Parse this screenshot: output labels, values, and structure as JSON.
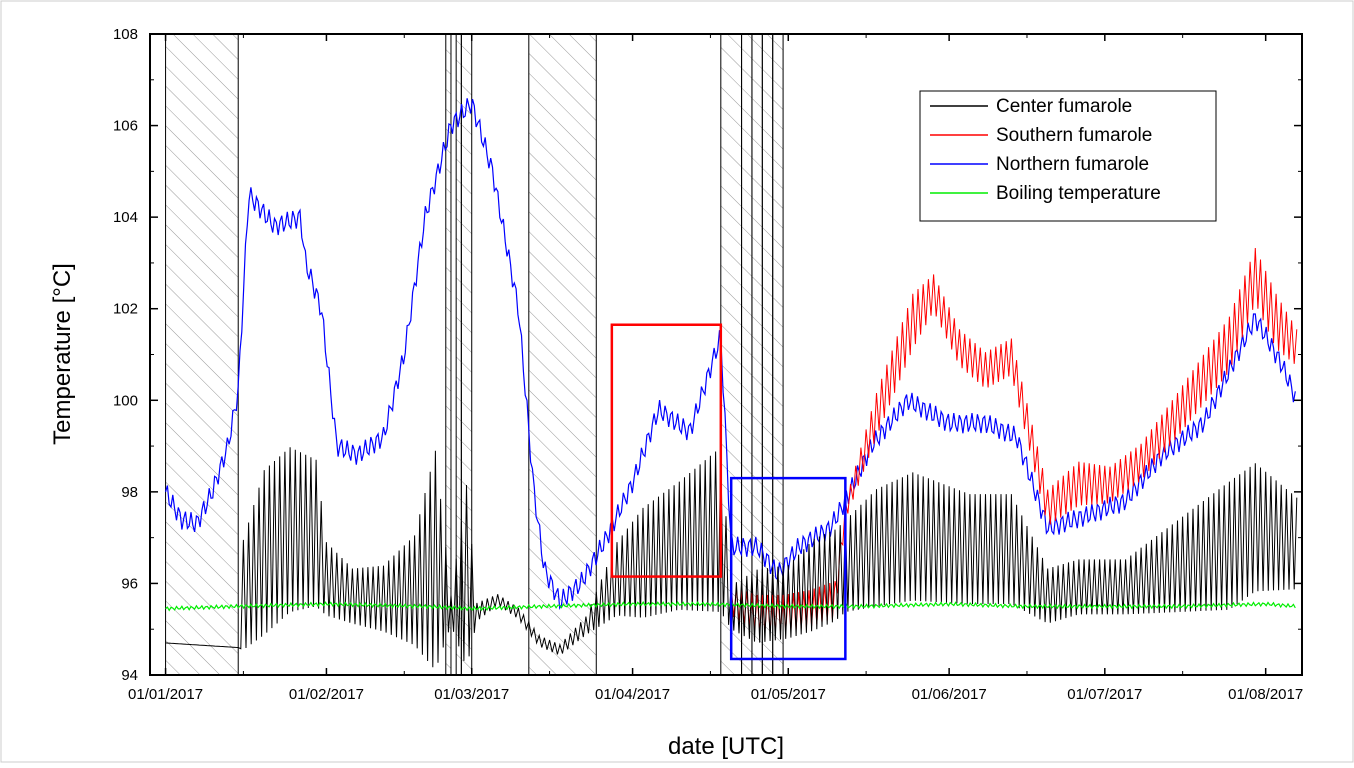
{
  "chart_data": {
    "type": "line",
    "xlabel": "date [UTC]",
    "ylabel": "Temperature [°C]",
    "x_axis": {
      "type": "date",
      "range": [
        "2016-12-29",
        "2017-08-08"
      ],
      "ticks": [
        "2017-01-01",
        "2017-02-01",
        "2017-03-01",
        "2017-04-01",
        "2017-05-01",
        "2017-06-01",
        "2017-07-01",
        "2017-08-01"
      ],
      "tick_labels": [
        "01/01/2017",
        "01/02/2017",
        "01/03/2017",
        "01/04/2017",
        "01/05/2017",
        "01/06/2017",
        "01/07/2017",
        "01/08/2017"
      ]
    },
    "y_axis": {
      "range": [
        94,
        108
      ],
      "ticks": [
        94,
        96,
        98,
        100,
        102,
        104,
        106,
        108
      ],
      "tick_labels": [
        "94",
        "96",
        "98",
        "100",
        "102",
        "104",
        "106",
        "108"
      ]
    },
    "grid": false,
    "legend": {
      "placement": "top-right"
    },
    "series": [
      {
        "name": "Center fumarole",
        "color": "#000000",
        "style": "oscillating",
        "points": [
          [
            "2017-01-01",
            94.7,
            0
          ],
          [
            "2017-01-15",
            94.6,
            0
          ],
          [
            "2017-01-16",
            95.3,
            3.0
          ],
          [
            "2017-01-20",
            96.0,
            4.5
          ],
          [
            "2017-01-25",
            96.5,
            4.5
          ],
          [
            "2017-01-30",
            96.5,
            4.0
          ],
          [
            "2017-02-01",
            95.8,
            2.0
          ],
          [
            "2017-02-06",
            95.5,
            1.5
          ],
          [
            "2017-02-12",
            95.4,
            1.8
          ],
          [
            "2017-02-18",
            95.4,
            3.0
          ],
          [
            "2017-02-22",
            95.6,
            6.0
          ],
          [
            "2017-02-25",
            95.3,
            0.8
          ],
          [
            "2017-02-28",
            95.4,
            5.0
          ],
          [
            "2017-03-02",
            95.3,
            0.5
          ],
          [
            "2017-03-06",
            95.6,
            0.3
          ],
          [
            "2017-03-10",
            95.3,
            0.3
          ],
          [
            "2017-03-14",
            94.7,
            0.3
          ],
          [
            "2017-03-18",
            94.5,
            0.3
          ],
          [
            "2017-03-23",
            95.0,
            0.5
          ],
          [
            "2017-03-29",
            95.8,
            2.0
          ],
          [
            "2017-04-03",
            96.0,
            3.0
          ],
          [
            "2017-04-10",
            96.3,
            3.5
          ],
          [
            "2017-04-18",
            96.5,
            4.5
          ],
          [
            "2017-04-20",
            95.3,
            1.2
          ],
          [
            "2017-04-25",
            95.2,
            2.0
          ],
          [
            "2017-05-01",
            95.3,
            2.0
          ],
          [
            "2017-05-06",
            95.6,
            2.5
          ],
          [
            "2017-05-10",
            95.8,
            2.5
          ],
          [
            "2017-05-12",
            96.0,
            2.5
          ],
          [
            "2017-05-18",
            96.3,
            3.2
          ],
          [
            "2017-05-25",
            96.5,
            3.5
          ],
          [
            "2017-06-05",
            96.3,
            3.0
          ],
          [
            "2017-06-13",
            96.3,
            3.0
          ],
          [
            "2017-06-20",
            95.5,
            1.5
          ],
          [
            "2017-06-26",
            95.7,
            1.5
          ],
          [
            "2017-07-05",
            95.7,
            1.5
          ],
          [
            "2017-07-15",
            96.0,
            2.5
          ],
          [
            "2017-07-25",
            96.3,
            3.5
          ],
          [
            "2017-07-30",
            96.7,
            3.5
          ],
          [
            "2017-08-07",
            96.5,
            2.5
          ]
        ]
      },
      {
        "name": "Southern fumarole",
        "color": "#ff0000",
        "style": "oscillating",
        "points": [
          [
            "2017-04-20",
            95.5,
            0.8
          ],
          [
            "2017-04-25",
            95.2,
            1.0
          ],
          [
            "2017-04-30",
            95.2,
            1.0
          ],
          [
            "2017-05-05",
            95.3,
            1.0
          ],
          [
            "2017-05-10",
            95.5,
            1.0
          ],
          [
            "2017-05-12",
            97.5,
            0.5
          ],
          [
            "2017-05-18",
            99.5,
            1.2
          ],
          [
            "2017-05-25",
            101.5,
            1.5
          ],
          [
            "2017-05-29",
            102.2,
            1.0
          ],
          [
            "2017-06-03",
            101.0,
            1.0
          ],
          [
            "2017-06-08",
            100.5,
            1.0
          ],
          [
            "2017-06-13",
            100.8,
            1.0
          ],
          [
            "2017-06-20",
            97.5,
            1.0
          ],
          [
            "2017-06-26",
            98.0,
            1.2
          ],
          [
            "2017-07-02",
            98.0,
            1.0
          ],
          [
            "2017-07-08",
            98.5,
            1.0
          ],
          [
            "2017-07-15",
            99.5,
            1.2
          ],
          [
            "2017-07-25",
            101.0,
            1.5
          ],
          [
            "2017-07-30",
            102.5,
            1.5
          ],
          [
            "2017-08-03",
            101.5,
            1.5
          ],
          [
            "2017-08-07",
            101.0,
            1.0
          ]
        ]
      },
      {
        "name": "Northern fumarole",
        "color": "#0000ff",
        "style": "smooth",
        "points": [
          [
            "2017-01-01",
            98.0
          ],
          [
            "2017-01-04",
            97.4
          ],
          [
            "2017-01-07",
            97.3
          ],
          [
            "2017-01-10",
            98.0
          ],
          [
            "2017-01-13",
            99.0
          ],
          [
            "2017-01-15",
            100.2
          ],
          [
            "2017-01-17",
            104.5
          ],
          [
            "2017-01-22",
            103.8
          ],
          [
            "2017-01-27",
            104.0
          ],
          [
            "2017-01-28",
            103.0
          ],
          [
            "2017-01-31",
            102.0
          ],
          [
            "2017-02-03",
            99.0
          ],
          [
            "2017-02-07",
            98.8
          ],
          [
            "2017-02-12",
            99.2
          ],
          [
            "2017-02-16",
            101.0
          ],
          [
            "2017-02-20",
            104.0
          ],
          [
            "2017-02-25",
            106.0
          ],
          [
            "2017-03-01",
            106.5
          ],
          [
            "2017-03-05",
            105.0
          ],
          [
            "2017-03-10",
            102.0
          ],
          [
            "2017-03-13",
            98.0
          ],
          [
            "2017-03-15",
            96.3
          ],
          [
            "2017-03-18",
            95.6
          ],
          [
            "2017-03-22",
            96.0
          ],
          [
            "2017-03-27",
            97.0
          ],
          [
            "2017-04-01",
            98.2
          ],
          [
            "2017-04-06",
            99.8
          ],
          [
            "2017-04-12",
            99.3
          ],
          [
            "2017-04-18",
            101.4
          ],
          [
            "2017-04-20",
            96.8
          ],
          [
            "2017-04-25",
            96.8
          ],
          [
            "2017-04-29",
            96.2
          ],
          [
            "2017-05-03",
            96.8
          ],
          [
            "2017-05-09",
            97.2
          ],
          [
            "2017-05-12",
            97.8
          ],
          [
            "2017-05-17",
            99.0
          ],
          [
            "2017-05-24",
            100.0
          ],
          [
            "2017-06-01",
            99.5
          ],
          [
            "2017-06-08",
            99.5
          ],
          [
            "2017-06-14",
            99.2
          ],
          [
            "2017-06-20",
            97.2
          ],
          [
            "2017-06-28",
            97.5
          ],
          [
            "2017-07-05",
            97.8
          ],
          [
            "2017-07-12",
            98.8
          ],
          [
            "2017-07-20",
            99.5
          ],
          [
            "2017-07-30",
            101.8
          ],
          [
            "2017-08-04",
            100.8
          ],
          [
            "2017-08-07",
            100.0
          ]
        ]
      },
      {
        "name": "Boiling temperature",
        "color": "#00ee00",
        "style": "smooth",
        "points": [
          [
            "2017-01-01",
            95.45
          ],
          [
            "2017-01-15",
            95.5
          ],
          [
            "2017-02-01",
            95.55
          ],
          [
            "2017-02-20",
            95.5
          ],
          [
            "2017-03-01",
            95.45
          ],
          [
            "2017-03-15",
            95.5
          ],
          [
            "2017-04-01",
            95.55
          ],
          [
            "2017-04-15",
            95.55
          ],
          [
            "2017-05-01",
            95.5
          ],
          [
            "2017-05-15",
            95.5
          ],
          [
            "2017-06-01",
            95.55
          ],
          [
            "2017-06-15",
            95.5
          ],
          [
            "2017-07-01",
            95.5
          ],
          [
            "2017-07-15",
            95.5
          ],
          [
            "2017-08-01",
            95.55
          ],
          [
            "2017-08-07",
            95.5
          ]
        ]
      }
    ],
    "hatched_periods": [
      [
        "2017-01-01",
        "2017-01-15"
      ],
      [
        "2017-02-24",
        "2017-02-25"
      ],
      [
        "2017-02-26",
        "2017-02-27"
      ],
      [
        "2017-02-27",
        "2017-03-01"
      ],
      [
        "2017-03-12",
        "2017-03-25"
      ],
      [
        "2017-04-18",
        "2017-04-22"
      ],
      [
        "2017-04-22",
        "2017-04-24"
      ],
      [
        "2017-04-24",
        "2017-04-26"
      ],
      [
        "2017-04-26",
        "2017-04-28"
      ],
      [
        "2017-04-28",
        "2017-04-30"
      ]
    ],
    "highlight_boxes": [
      {
        "color": "#ff0000",
        "x": [
          "2017-03-28",
          "2017-04-18"
        ],
        "y": [
          96.15,
          101.65
        ]
      },
      {
        "color": "#0000ff",
        "x": [
          "2017-04-20",
          "2017-05-12"
        ],
        "y": [
          94.35,
          98.3
        ]
      }
    ]
  }
}
